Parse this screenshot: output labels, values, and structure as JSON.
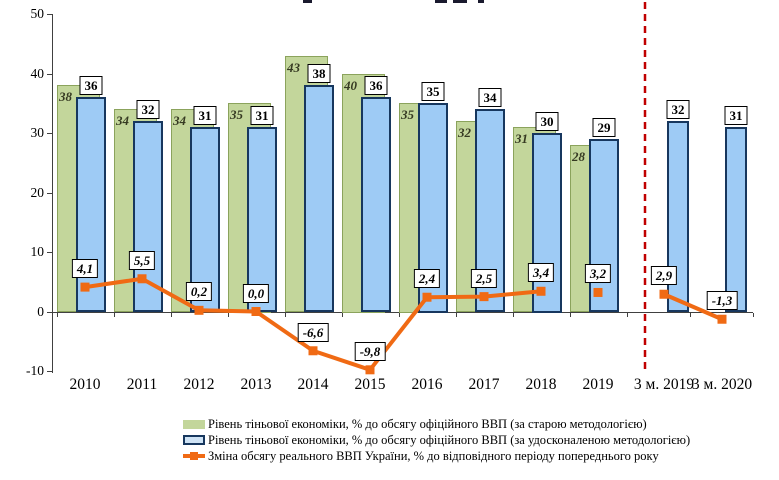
{
  "chart_data": {
    "type": "bar+line-combo",
    "categories": [
      "2010",
      "2011",
      "2012",
      "2013",
      "2014",
      "2015",
      "2016",
      "2017",
      "2018",
      "2019",
      "3 м. 2019",
      "3 м. 2020"
    ],
    "series": [
      {
        "name": "Рівень тіньової економіки, % до обсягу офіційного ВВП (за старою методологією)",
        "type": "bar",
        "values": [
          38,
          34,
          34,
          35,
          43,
          40,
          35,
          32,
          31,
          28,
          null,
          null
        ]
      },
      {
        "name": "Рівень тіньової економіки, % до обсягу офіційного ВВП (за удосконаленою методологією)",
        "type": "bar",
        "values": [
          36,
          32,
          31,
          31,
          38,
          36,
          35,
          34,
          30,
          29,
          32,
          31
        ]
      },
      {
        "name": "Зміна обсягу реального ВВП України, % до відповідного періоду попереднього року",
        "type": "line",
        "values": [
          4.1,
          5.5,
          0.2,
          0.0,
          -6.6,
          -9.8,
          2.4,
          2.5,
          3.4,
          3.2,
          2.9,
          -1.3
        ],
        "labels": [
          "4,1",
          "5,5",
          "0,2",
          "0,0",
          "-6,6",
          "-9,8",
          "2,4",
          "2,5",
          "3,4",
          "3,2",
          "2,9",
          "-1,3"
        ],
        "segments": [
          [
            0,
            8
          ],
          [
            10,
            11
          ]
        ]
      }
    ],
    "yticks": [
      50,
      40,
      30,
      20,
      10,
      0,
      -10
    ],
    "ylim": [
      -10,
      50
    ],
    "grid": false,
    "legend_position": "bottom",
    "divider": {
      "between": [
        "2019",
        "3 м. 2019"
      ],
      "style": "dashed"
    },
    "colors": {
      "green_fill": "#c3d69b",
      "green_border": "#8ba35c",
      "green_label_text": "#363a22",
      "blue_fill": "#9ecbf5",
      "blue_border": "#17375e",
      "orange_line": "#f06a14",
      "divider_red": "#c00000",
      "axis": "#404040",
      "label_box_bg": "#ffffff",
      "label_box_border": "#000000"
    }
  }
}
